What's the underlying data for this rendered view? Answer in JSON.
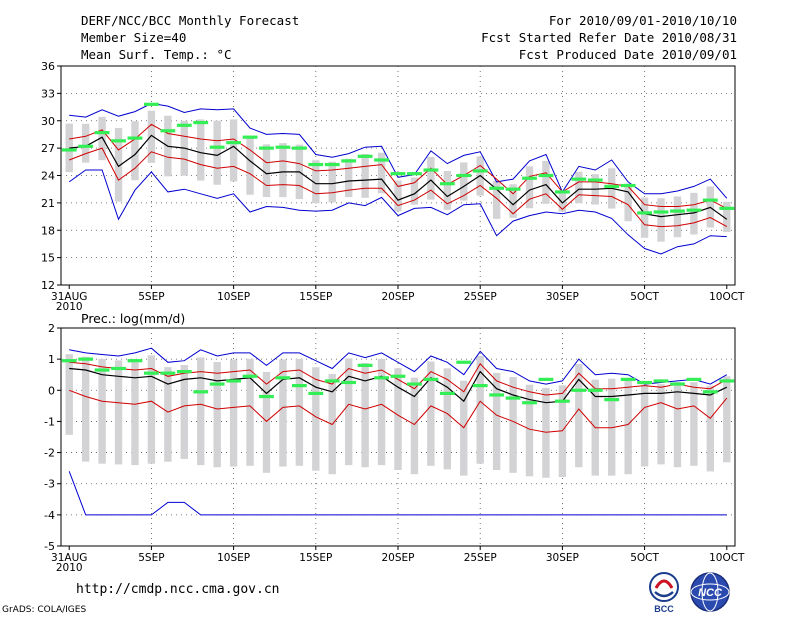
{
  "header": {
    "title": "DERF/NCC/BCC Monthly Forecast",
    "member_size": "Member Size=40",
    "variable": "Mean Surf. Temp.: °C",
    "period": "For 2010/09/01-2010/10/10",
    "refer_date": "Fcst Started Refer Date 2010/08/31",
    "produced_date": "Fcst Produced Date 2010/09/01"
  },
  "footer": {
    "url": "http://cmdp.ncc.cma.gov.cn",
    "credit": "GrADS: COLA/IGES",
    "logo_left_text": "BCC",
    "logo_right_text": "NCC"
  },
  "colors": {
    "ensemble_bar": "#d3d3d6",
    "mean": "#000000",
    "spread": "#d00000",
    "extreme": "#0000d0",
    "observed": "#33ee55"
  },
  "chart_data": [
    {
      "type": "line",
      "title": "Mean Surf. Temp.: °C",
      "ylabel": "°C",
      "ylim": [
        12,
        36
      ],
      "yticks": [
        12,
        15,
        18,
        21,
        24,
        27,
        30,
        33,
        36
      ],
      "x_tick_labels": [
        "31AUG",
        "5SEP",
        "10SEP",
        "15SEP",
        "20SEP",
        "25SEP",
        "30SEP",
        "5OCT",
        "10OCT"
      ],
      "x_year_label": "2010",
      "x_days": 41,
      "grid": "dotted",
      "series": [
        {
          "name": "mean",
          "values": [
            27.0,
            27.2,
            28.2,
            25.0,
            26.3,
            28.4,
            27.2,
            27.0,
            26.5,
            26.2,
            27.2,
            25.6,
            24.2,
            24.4,
            24.4,
            23.1,
            23.1,
            23.4,
            23.5,
            23.6,
            21.3,
            22.0,
            23.5,
            21.7,
            22.8,
            24.0,
            22.5,
            20.8,
            22.4,
            23.0,
            21.0,
            22.5,
            22.5,
            22.6,
            22.2,
            19.8,
            19.5,
            19.7,
            19.9,
            20.5,
            19.2
          ]
        },
        {
          "name": "upper spread",
          "values": [
            28.0,
            28.3,
            29.0,
            26.8,
            28.0,
            29.6,
            28.6,
            28.3,
            28.0,
            27.8,
            28.0,
            26.8,
            25.4,
            25.6,
            25.3,
            24.5,
            24.6,
            24.8,
            25.0,
            25.2,
            22.8,
            23.2,
            24.8,
            23.0,
            24.0,
            25.1,
            23.6,
            22.0,
            23.9,
            24.3,
            22.2,
            23.3,
            23.3,
            23.1,
            22.8,
            20.8,
            20.6,
            20.6,
            20.8,
            21.3,
            20.4
          ]
        },
        {
          "name": "lower spread",
          "values": [
            25.7,
            26.4,
            27.0,
            23.5,
            24.8,
            26.6,
            26.0,
            25.8,
            25.2,
            24.8,
            25.0,
            24.2,
            22.9,
            23.0,
            22.9,
            22.0,
            22.1,
            22.4,
            22.6,
            22.6,
            20.7,
            21.3,
            22.4,
            20.9,
            21.8,
            22.9,
            21.5,
            19.8,
            21.4,
            22.0,
            20.3,
            21.9,
            21.8,
            21.7,
            20.8,
            18.6,
            18.4,
            18.5,
            18.8,
            19.4,
            18.4
          ]
        },
        {
          "name": "maximum",
          "values": [
            30.6,
            30.4,
            31.2,
            30.5,
            31.0,
            31.9,
            31.6,
            30.9,
            31.3,
            31.2,
            31.3,
            29.2,
            28.5,
            28.6,
            28.5,
            26.3,
            26.0,
            26.4,
            27.1,
            27.2,
            23.8,
            24.1,
            26.7,
            25.3,
            26.2,
            26.6,
            23.3,
            23.6,
            25.6,
            26.3,
            22.2,
            25.0,
            24.6,
            25.7,
            23.3,
            22.0,
            22.0,
            22.3,
            22.8,
            23.6,
            21.5
          ]
        },
        {
          "name": "minimum",
          "values": [
            23.3,
            24.6,
            24.6,
            19.2,
            22.4,
            24.4,
            22.2,
            22.5,
            22.0,
            21.5,
            22.0,
            20.0,
            20.6,
            20.5,
            20.2,
            20.1,
            20.2,
            21.0,
            20.7,
            21.6,
            19.6,
            20.4,
            20.5,
            19.7,
            20.8,
            20.9,
            17.4,
            19.0,
            19.6,
            20.0,
            19.8,
            20.2,
            20.0,
            19.3,
            17.5,
            16.0,
            15.4,
            16.2,
            16.5,
            17.4,
            17.3
          ]
        },
        {
          "name": "observed",
          "values": [
            26.8,
            27.2,
            28.7,
            27.8,
            28.1,
            31.8,
            28.9,
            29.5,
            29.8,
            27.1,
            27.6,
            28.2,
            27.0,
            27.1,
            27.0,
            25.2,
            25.2,
            25.6,
            26.1,
            25.7,
            24.2,
            24.2,
            24.6,
            23.1,
            24.0,
            24.5,
            22.6,
            22.5,
            23.7,
            24.0,
            22.2,
            23.6,
            23.5,
            22.8,
            22.9,
            19.9,
            20.0,
            20.1,
            20.2,
            21.3,
            20.4
          ]
        }
      ]
    },
    {
      "type": "line",
      "title": "Prec.: log(mm/d)",
      "ylabel": "log(mm/d)",
      "ylim": [
        -5,
        2
      ],
      "yticks": [
        -5,
        -4,
        -3,
        -2,
        -1,
        0,
        1,
        2
      ],
      "x_tick_labels": [
        "31AUG",
        "5SEP",
        "10SEP",
        "15SEP",
        "20SEP",
        "25SEP",
        "30SEP",
        "5OCT",
        "10OCT"
      ],
      "x_year_label": "2010",
      "x_days": 41,
      "grid": "dotted",
      "series": [
        {
          "name": "mean",
          "values": [
            0.7,
            0.65,
            0.5,
            0.45,
            0.4,
            0.45,
            0.2,
            0.35,
            0.4,
            0.3,
            0.35,
            0.4,
            -0.1,
            0.35,
            0.4,
            0.1,
            -0.05,
            0.45,
            0.3,
            0.45,
            0.1,
            -0.2,
            0.4,
            0.1,
            -0.35,
            0.6,
            0.05,
            -0.15,
            -0.3,
            -0.4,
            -0.35,
            0.35,
            -0.2,
            -0.2,
            -0.15,
            -0.1,
            -0.1,
            -0.05,
            -0.1,
            -0.15,
            0.1
          ]
        },
        {
          "name": "upper spread",
          "values": [
            0.9,
            0.85,
            0.75,
            0.7,
            0.65,
            0.7,
            0.45,
            0.55,
            0.6,
            0.55,
            0.6,
            0.65,
            0.2,
            0.6,
            0.65,
            0.35,
            0.2,
            0.7,
            0.55,
            0.65,
            0.35,
            0.05,
            0.6,
            0.35,
            -0.05,
            0.85,
            0.3,
            0.1,
            -0.05,
            -0.15,
            -0.1,
            0.55,
            0.05,
            0.05,
            0.1,
            0.15,
            0.1,
            0.2,
            0.1,
            0.05,
            0.35
          ]
        },
        {
          "name": "lower spread",
          "values": [
            0.0,
            -0.2,
            -0.35,
            -0.4,
            -0.45,
            -0.35,
            -0.7,
            -0.5,
            -0.45,
            -0.6,
            -0.55,
            -0.5,
            -1.0,
            -0.55,
            -0.5,
            -0.85,
            -1.1,
            -0.45,
            -0.6,
            -0.45,
            -0.8,
            -1.1,
            -0.5,
            -0.75,
            -1.2,
            -0.35,
            -0.8,
            -1.0,
            -1.25,
            -1.35,
            -1.3,
            -0.6,
            -1.2,
            -1.2,
            -1.1,
            -0.55,
            -0.4,
            -0.6,
            -0.5,
            -0.9,
            -0.25
          ]
        },
        {
          "name": "maximum",
          "values": [
            1.3,
            1.2,
            1.15,
            1.1,
            1.2,
            1.35,
            0.9,
            0.95,
            1.3,
            1.1,
            1.2,
            1.2,
            0.8,
            1.2,
            1.2,
            0.95,
            0.7,
            1.2,
            1.05,
            1.2,
            0.9,
            0.6,
            1.1,
            0.9,
            0.5,
            1.25,
            0.7,
            0.6,
            0.3,
            0.2,
            0.3,
            1.0,
            0.5,
            0.55,
            0.5,
            0.2,
            0.25,
            0.3,
            0.35,
            0.2,
            0.5
          ]
        },
        {
          "name": "minimum",
          "values": [
            -2.6,
            -4.0,
            -4.0,
            -4.0,
            -4.0,
            -4.0,
            -3.6,
            -3.6,
            -4.0,
            -4.0,
            -4.0,
            -4.0,
            -4.0,
            -4.0,
            -4.0,
            -4.0,
            -4.0,
            -4.0,
            -4.0,
            -4.0,
            -4.0,
            -4.0,
            -4.0,
            -4.0,
            -4.0,
            -4.0,
            -4.0,
            -4.0,
            -4.0,
            -4.0,
            -4.0,
            -4.0,
            -4.0,
            -4.0,
            -4.0,
            -4.0,
            -4.0,
            -4.0,
            -4.0,
            -4.0,
            -4.0
          ]
        },
        {
          "name": "observed",
          "values": [
            0.95,
            1.0,
            0.65,
            0.7,
            0.95,
            0.55,
            0.55,
            0.6,
            -0.05,
            0.2,
            0.3,
            0.45,
            -0.2,
            0.4,
            0.15,
            -0.1,
            0.3,
            0.25,
            0.8,
            0.4,
            0.45,
            0.2,
            0.35,
            -0.1,
            0.9,
            0.15,
            -0.15,
            -0.25,
            -0.4,
            0.35,
            -0.35,
            0.0,
            0.0,
            -0.3,
            0.35,
            0.25,
            0.3,
            0.2,
            0.35,
            -0.05,
            0.3
          ]
        }
      ]
    }
  ]
}
